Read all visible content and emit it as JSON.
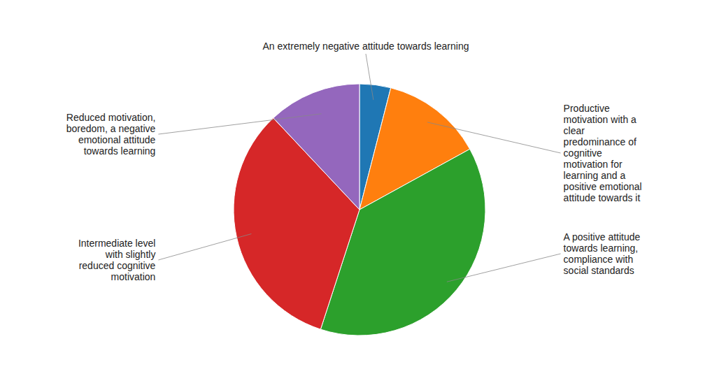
{
  "chart_data": {
    "type": "pie",
    "categories": [
      "An extremely negative attitude towards learning",
      "Productive\nmotivation with a\nclear\npredominance of\ncognitive\nmotivation for\nlearning and a\npositive emotional\nattitude towards it",
      "A positive attitude\ntowards learning,\ncompliance with\nsocial standards",
      "Intermediate level\nwith slightly\nreduced cognitive\nmotivation",
      "Reduced motivation,\nboredom, a negative\nemotional attitude\ntowards learning"
    ],
    "values": [
      4,
      13,
      38,
      33,
      12
    ]
  }
}
